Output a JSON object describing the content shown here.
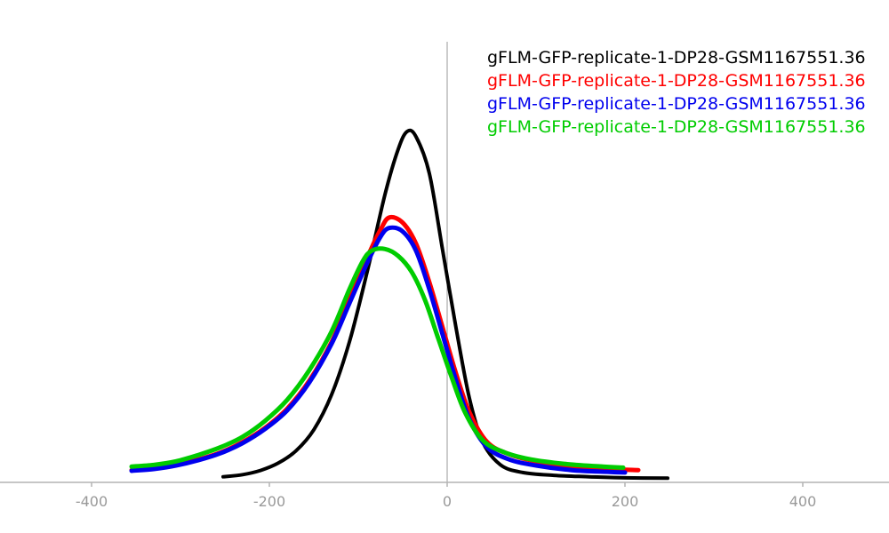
{
  "chart_data": {
    "type": "line",
    "title": "",
    "xlabel": "",
    "ylabel": "",
    "xlim": [
      -500,
      500
    ],
    "ylim": [
      0,
      1.05
    ],
    "grid": false,
    "vline_x": 0,
    "legend_position": "top-right",
    "x_ticks": [
      {
        "value": -400,
        "label": "-400"
      },
      {
        "value": -200,
        "label": "-200"
      },
      {
        "value": 0,
        "label": "0"
      },
      {
        "value": 200,
        "label": "200"
      },
      {
        "value": 400,
        "label": "400"
      }
    ],
    "series": [
      {
        "name": "gFLM-GFP-replicate-1-DP28-GSM1167551.36",
        "color": "#000000",
        "stroke_width": 4,
        "x": [
          -252,
          -230,
          -210,
          -190,
          -170,
          -150,
          -130,
          -110,
          -90,
          -70,
          -55,
          -45,
          -35,
          -20,
          -5,
          10,
          25,
          40,
          60,
          85,
          120,
          160,
          200,
          248
        ],
        "y": [
          0.016,
          0.022,
          0.034,
          0.055,
          0.09,
          0.15,
          0.25,
          0.4,
          0.6,
          0.82,
          0.95,
          1.0,
          0.985,
          0.88,
          0.66,
          0.44,
          0.24,
          0.115,
          0.05,
          0.028,
          0.02,
          0.016,
          0.013,
          0.012
        ]
      },
      {
        "name": "gFLM-GFP-replicate-1-DP28-GSM1167551.36",
        "color": "#ff0000",
        "stroke_width": 5,
        "x": [
          -355,
          -330,
          -305,
          -280,
          -255,
          -230,
          -205,
          -180,
          -155,
          -130,
          -110,
          -90,
          -75,
          -65,
          -50,
          -35,
          -20,
          -5,
          10,
          25,
          45,
          70,
          100,
          140,
          180,
          215
        ],
        "y": [
          0.035,
          0.04,
          0.05,
          0.065,
          0.085,
          0.115,
          0.155,
          0.21,
          0.29,
          0.4,
          0.52,
          0.64,
          0.72,
          0.755,
          0.74,
          0.68,
          0.57,
          0.44,
          0.31,
          0.2,
          0.115,
          0.08,
          0.06,
          0.045,
          0.038,
          0.035
        ]
      },
      {
        "name": "gFLM-GFP-replicate-1-DP28-GSM1167551.36",
        "color": "#0000ee",
        "stroke_width": 5,
        "x": [
          -355,
          -330,
          -305,
          -280,
          -255,
          -230,
          -205,
          -180,
          -155,
          -130,
          -110,
          -90,
          -75,
          -65,
          -50,
          -35,
          -20,
          -5,
          10,
          25,
          45,
          70,
          100,
          140,
          180,
          200
        ],
        "y": [
          0.033,
          0.038,
          0.048,
          0.063,
          0.083,
          0.112,
          0.152,
          0.205,
          0.285,
          0.395,
          0.51,
          0.625,
          0.7,
          0.725,
          0.715,
          0.66,
          0.55,
          0.42,
          0.29,
          0.18,
          0.1,
          0.065,
          0.048,
          0.035,
          0.03,
          0.028
        ]
      },
      {
        "name": "gFLM-GFP-replicate-1-DP28-GSM1167551.36",
        "color": "#00cc00",
        "stroke_width": 5,
        "x": [
          -355,
          -330,
          -305,
          -280,
          -255,
          -230,
          -205,
          -180,
          -155,
          -130,
          -110,
          -95,
          -85,
          -70,
          -55,
          -40,
          -25,
          -10,
          5,
          20,
          40,
          65,
          95,
          135,
          175,
          198
        ],
        "y": [
          0.045,
          0.05,
          0.06,
          0.078,
          0.1,
          0.13,
          0.175,
          0.235,
          0.32,
          0.43,
          0.55,
          0.63,
          0.66,
          0.665,
          0.645,
          0.6,
          0.52,
          0.41,
          0.3,
          0.2,
          0.12,
          0.085,
          0.065,
          0.052,
          0.045,
          0.042
        ]
      }
    ]
  },
  "axis": {
    "line_color": "#b3b3b3",
    "vline_color": "#9a9a9a",
    "tick_label_color": "#999999"
  }
}
